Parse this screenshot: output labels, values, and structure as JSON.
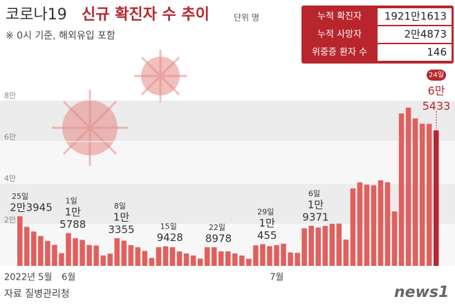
{
  "chart_data": {
    "type": "bar",
    "title": "코로나19",
    "title_bold": "신규 확진자 수 추이",
    "unit": "단위 명",
    "subtitle": "※ 0시 기준, 해외유입 포함",
    "source": "자료 질병관리청",
    "logo": "news1",
    "summary": [
      {
        "label": "누적 확진자",
        "value": "1921만1613"
      },
      {
        "label": "누적 사망자",
        "value": "2만4873"
      },
      {
        "label": "위중증 환자 수",
        "value": "146"
      }
    ],
    "color": "#e0605e",
    "highlight_color": "#b8252c",
    "ylim": [
      0,
      80000
    ],
    "yticks": [
      {
        "value": 20000,
        "label": "2만"
      },
      {
        "value": 40000,
        "label": "4만"
      },
      {
        "value": 60000,
        "label": "6만"
      },
      {
        "value": 80000,
        "label": "8만"
      }
    ],
    "categories": [
      "2022년 5월",
      null,
      null,
      null,
      null,
      null,
      null,
      "6월",
      null,
      null,
      null,
      null,
      null,
      null,
      null,
      null,
      null,
      null,
      null,
      null,
      null,
      null,
      null,
      null,
      null,
      null,
      null,
      null,
      null,
      null,
      null,
      null,
      null,
      null,
      null,
      null,
      null,
      "7월",
      null,
      null,
      null,
      null,
      null,
      null,
      null,
      null,
      null,
      null,
      null,
      null,
      null,
      null,
      null,
      null,
      null,
      null,
      null,
      null,
      null,
      null,
      null
    ],
    "values": [
      23945,
      18816,
      16584,
      14410,
      12045,
      10115,
      6141,
      15788,
      13358,
      12542,
      10060,
      9835,
      5022,
      5929,
      13355,
      12162,
      10000,
      9000,
      7198,
      3823,
      9000,
      9428,
      9000,
      7000,
      6000,
      5000,
      3530,
      9000,
      8978,
      7000,
      7000,
      6000,
      5000,
      3423,
      9896,
      10455,
      9500,
      10000,
      10700,
      6500,
      6253,
      18147,
      19371,
      18511,
      19323,
      20286,
      20410,
      12693,
      37360,
      40266,
      39196,
      38882,
      41310,
      40342,
      26299,
      73582,
      76402,
      71170,
      68632,
      68551,
      65433
    ],
    "day_labels": [
      "25일",
      null,
      null,
      null,
      null,
      null,
      null,
      "1일",
      null,
      null,
      null,
      null,
      null,
      null,
      "8일",
      null,
      null,
      null,
      null,
      null,
      null,
      "15일",
      null,
      null,
      null,
      null,
      null,
      null,
      "22일",
      null,
      null,
      null,
      null,
      null,
      null,
      "29일",
      null,
      null,
      null,
      null,
      null,
      null,
      "6일",
      null,
      null,
      null,
      null,
      null,
      null,
      null,
      null,
      null,
      null,
      null,
      null,
      null,
      null,
      null,
      null,
      null,
      "24일"
    ],
    "value_labels": [
      [
        "2만3945"
      ],
      null,
      null,
      null,
      null,
      null,
      null,
      [
        "1만",
        "5788"
      ],
      null,
      null,
      null,
      null,
      null,
      null,
      [
        "1만",
        "3355"
      ],
      null,
      null,
      null,
      null,
      null,
      null,
      [
        "9428"
      ],
      null,
      null,
      null,
      null,
      null,
      null,
      [
        "8978"
      ],
      null,
      null,
      null,
      null,
      null,
      null,
      [
        "1만",
        "455"
      ],
      null,
      null,
      null,
      null,
      null,
      null,
      [
        "1만",
        "9371"
      ],
      null,
      null,
      null,
      null,
      null,
      null,
      null,
      null,
      null,
      null,
      null,
      null,
      null,
      null,
      null,
      null,
      null,
      [
        "6만",
        "5433"
      ]
    ]
  }
}
